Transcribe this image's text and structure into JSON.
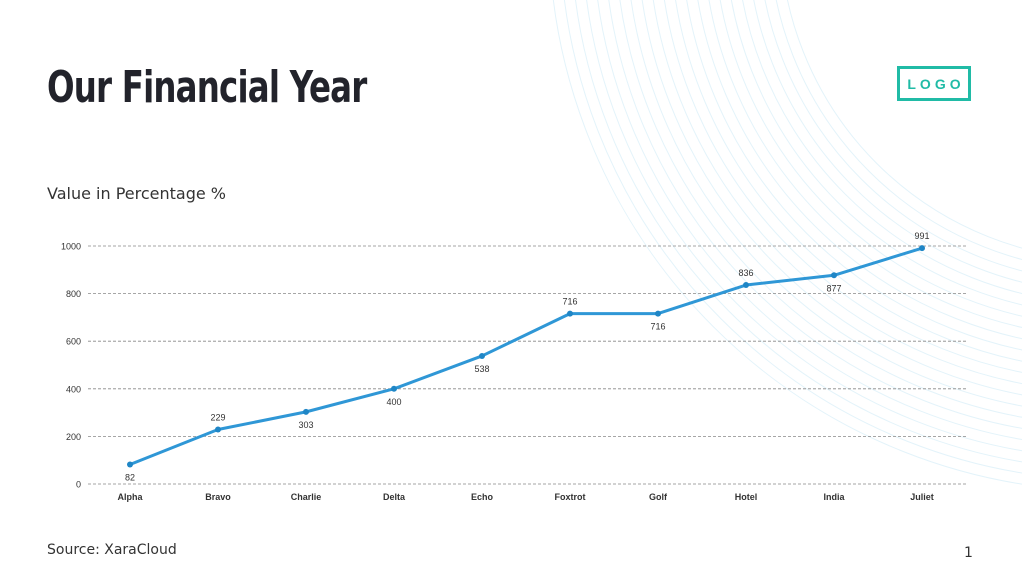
{
  "slide": {
    "title": "Our Financial Year",
    "logo_text": "LOGO",
    "source": "Source: XaraCloud",
    "page_number": "1",
    "accent_color": "#20bba6",
    "line_color": "#2f97d6"
  },
  "chart_data": {
    "type": "line",
    "title": "Value in Percentage %",
    "categories": [
      "Alpha",
      "Bravo",
      "Charlie",
      "Delta",
      "Echo",
      "Foxtrot",
      "Golf",
      "Hotel",
      "India",
      "Juliet"
    ],
    "values": [
      82,
      229,
      303,
      400,
      538,
      716,
      716,
      836,
      877,
      991
    ],
    "ylim": [
      0,
      1000
    ],
    "yticks": [
      0,
      200,
      400,
      600,
      800,
      1000
    ],
    "grid": "horizontal dashed",
    "data_labels": true
  }
}
